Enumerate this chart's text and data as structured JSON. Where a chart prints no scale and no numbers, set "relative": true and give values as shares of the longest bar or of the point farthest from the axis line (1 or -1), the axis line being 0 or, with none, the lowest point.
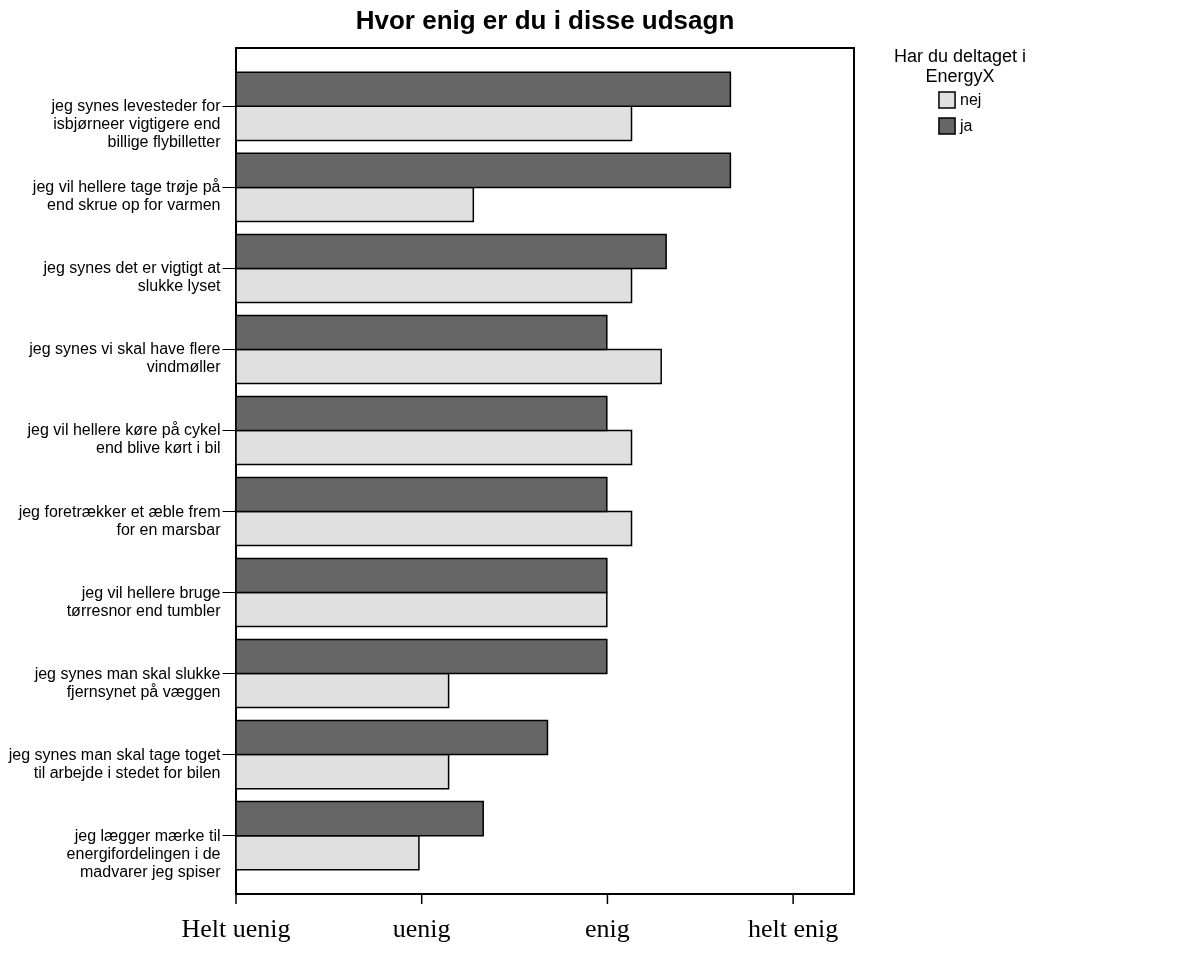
{
  "chart_data": {
    "type": "bar",
    "orientation": "horizontal",
    "title": "Hvor enig er du i disse udsagn",
    "legend_title": "Har du deltaget i EnergyX",
    "legend": "top right",
    "categories": [
      "jeg synes levesteder for isbjørneer vigtigere end billige flybilletter",
      "jeg vil hellere tage trøje på end skrue op for varmen",
      "jeg synes det er vigtigt at slukke lyset",
      "jeg synes vi skal have flere vindmøller",
      "jeg vil hellere køre på cykel end blive kørt i bil",
      "jeg foretrækker et æble frem for en marsbar",
      "jeg vil hellere bruge tørresnor end tumbler",
      "jeg synes man skal slukke fjernsynet på væggen",
      "jeg synes man skal tage toget til arbejde i stedet for bilen",
      "jeg lægger mærke til energifordelingen i de madvarer jeg spiser"
    ],
    "series": [
      {
        "name": "nej",
        "color": "#e0e0e0",
        "values": [
          0.8,
          0.48,
          0.8,
          0.86,
          0.8,
          0.8,
          0.75,
          0.43,
          0.43,
          0.37
        ]
      },
      {
        "name": "ja",
        "color": "#666666",
        "values": [
          1,
          1,
          0.87,
          0.75,
          0.75,
          0.75,
          0.75,
          0.75,
          0.63,
          0.5
        ]
      }
    ],
    "relative": true,
    "annotations": [
      "Helt uenig",
      "uenig",
      "enig",
      "helt enig"
    ]
  }
}
